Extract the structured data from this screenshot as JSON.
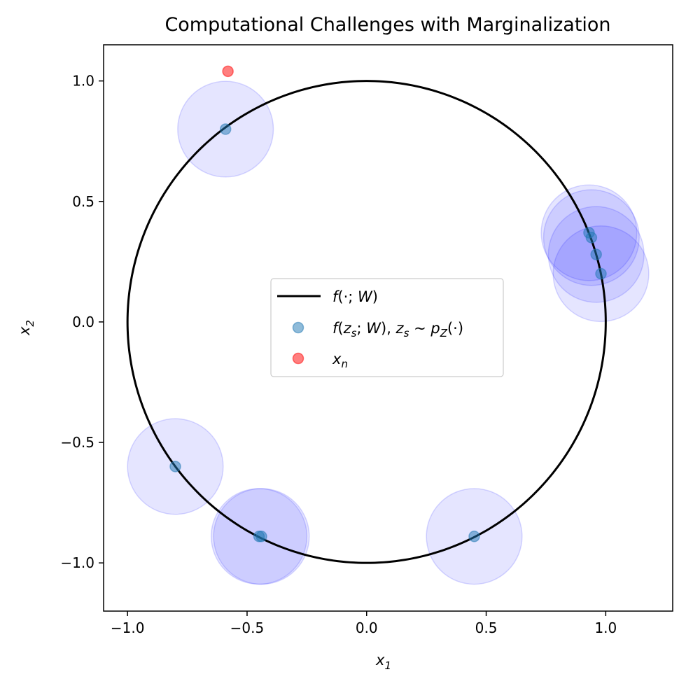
{
  "chart_data": {
    "type": "scatter",
    "title": "Computational Challenges with Marginalization",
    "xlabel": "x",
    "xlabel_sub": "1",
    "ylabel": "x",
    "ylabel_sub": "2",
    "xlim": [
      -1.1,
      1.28
    ],
    "ylim": [
      -1.2,
      1.15
    ],
    "xticks": [
      -1.0,
      -0.5,
      0.0,
      0.5,
      1.0
    ],
    "xtick_labels": [
      "−1.0",
      "−0.5",
      "0.0",
      "0.5",
      "1.0"
    ],
    "yticks": [
      1.0,
      0.5,
      0.0,
      -0.5,
      -1.0
    ],
    "ytick_labels": [
      "1.0",
      "0.5",
      "0.0",
      "−0.5",
      "−1.0"
    ],
    "grid": false,
    "legend_position": "center",
    "series": [
      {
        "name": "f(·; W)",
        "kind": "line",
        "shape": "unit-circle",
        "center": [
          0,
          0
        ],
        "radius": 1.0,
        "color": "#000000"
      },
      {
        "name": "f(z_s; W), z_s ~ p_Z(·)",
        "kind": "scatter",
        "color": "#1f77b4",
        "alpha": 0.5,
        "points": [
          {
            "x": -0.59,
            "y": 0.8
          },
          {
            "x": 0.93,
            "y": 0.37
          },
          {
            "x": 0.94,
            "y": 0.35
          },
          {
            "x": 0.96,
            "y": 0.28
          },
          {
            "x": 0.98,
            "y": 0.2
          },
          {
            "x": -0.8,
            "y": -0.6
          },
          {
            "x": -0.45,
            "y": -0.89
          },
          {
            "x": -0.44,
            "y": -0.89
          },
          {
            "x": 0.45,
            "y": -0.89
          }
        ]
      },
      {
        "name": "x_n",
        "kind": "scatter",
        "color": "#ff0000",
        "alpha": 0.5,
        "points": [
          {
            "x": -0.58,
            "y": 1.04
          }
        ]
      }
    ],
    "noise_circles": {
      "radius": 0.2,
      "color": "#0000ff",
      "fill_alpha": 0.1,
      "edge_alpha": 0.15,
      "centers_from_series": 1
    },
    "legend": [
      {
        "series": 0,
        "text": "f(·; W)",
        "symbol": "line",
        "color": "#000000"
      },
      {
        "series": 1,
        "text": "f(zₛ; W), zₛ ~ p_Z(·)",
        "symbol": "dot",
        "color": "#1f77b4"
      },
      {
        "series": 2,
        "text": "xₙ",
        "symbol": "dot",
        "color": "#ff0000"
      }
    ]
  }
}
